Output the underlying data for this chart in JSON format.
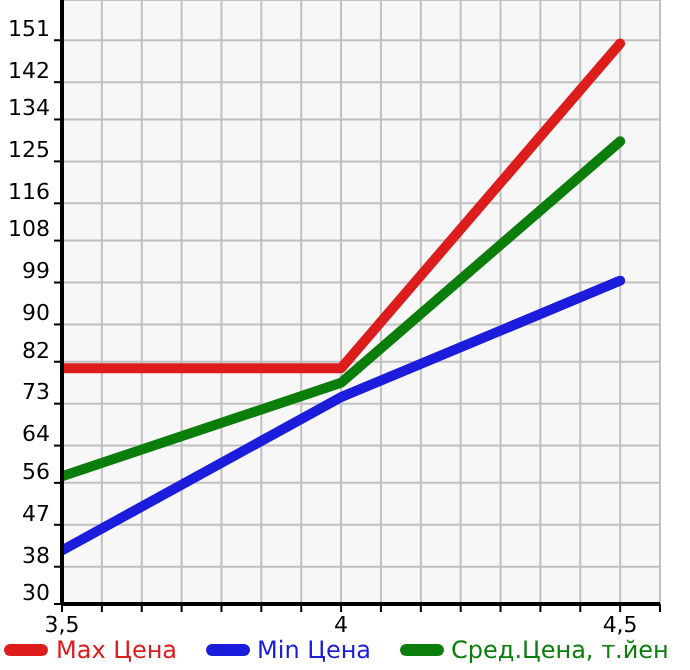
{
  "chart_data": {
    "type": "line",
    "x": [
      3.5,
      4,
      4.5
    ],
    "series": [
      {
        "name": "Max Цена",
        "color": "#dd1c1c",
        "values": [
          80.6,
          80.6,
          150.3
        ]
      },
      {
        "name": "Min Цена",
        "color": "#1c1cdd",
        "values": [
          41.5,
          74.4,
          99.4
        ]
      },
      {
        "name": "Сред.Цена, т.йен",
        "color": "#0b7d0b",
        "values": [
          57.4,
          77.5,
          129.3
        ]
      }
    ],
    "xlim": [
      3.5,
      4.5714
    ],
    "xticks": [
      {
        "value": 3.5,
        "label": "3,5"
      },
      {
        "value": 3.5714,
        "label": null
      },
      {
        "value": 3.6429,
        "label": null
      },
      {
        "value": 3.7143,
        "label": null
      },
      {
        "value": 3.7857,
        "label": null
      },
      {
        "value": 3.8571,
        "label": null
      },
      {
        "value": 3.9286,
        "label": null
      },
      {
        "value": 4,
        "label": "4"
      },
      {
        "value": 4.0714,
        "label": null
      },
      {
        "value": 4.1429,
        "label": null
      },
      {
        "value": 4.2143,
        "label": null
      },
      {
        "value": 4.2857,
        "label": null
      },
      {
        "value": 4.3571,
        "label": null
      },
      {
        "value": 4.4286,
        "label": null
      },
      {
        "value": 4.5,
        "label": "4,5"
      },
      {
        "value": 4.5714,
        "label": null
      }
    ],
    "ylim": [
      30,
      159.64
    ],
    "yticks": [
      30,
      38,
      47,
      56,
      64,
      73,
      82,
      90,
      99,
      108,
      116,
      125,
      134,
      142,
      151
    ],
    "grid": true,
    "legend": "bottom",
    "marker": "none",
    "line_style": "solid"
  }
}
